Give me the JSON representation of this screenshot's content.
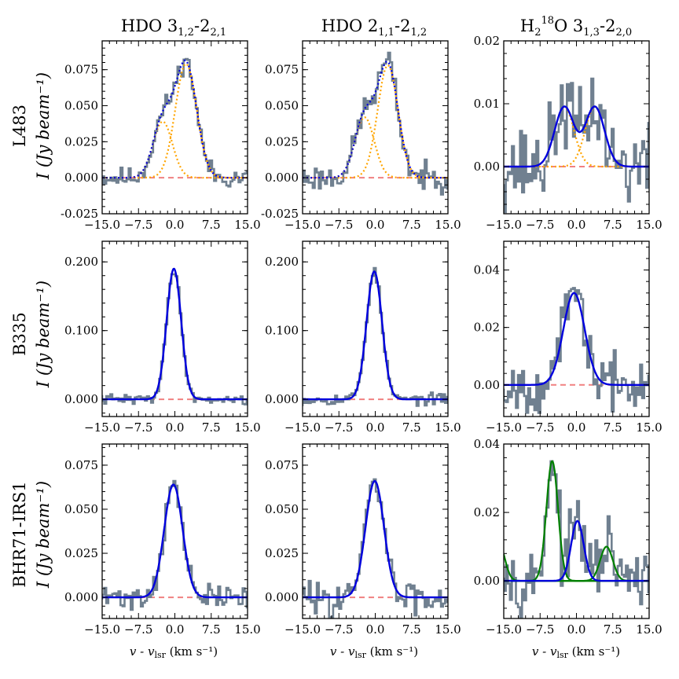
{
  "figure": {
    "column_titles": [
      {
        "base": "HDO 3",
        "sub1": "1,2",
        "dash": "-2",
        "sub2": "2,1"
      },
      {
        "base": "HDO 2",
        "sub1": "1,1",
        "dash": "-2",
        "sub2": "1,2"
      },
      {
        "base": "H",
        "sub0": "2",
        "sup": "18",
        "rest": "O 3",
        "sub1": "1,3",
        "dash": "-2",
        "sub2": "2,0"
      }
    ],
    "row_labels": [
      {
        "source": "L483",
        "ylabel": "I (Jy beam⁻¹)"
      },
      {
        "source": "B335",
        "ylabel": "I (Jy beam⁻¹)"
      },
      {
        "source": "BHR71-IRS1",
        "ylabel": "I (Jy beam⁻¹)"
      }
    ],
    "xlabel": "v - v_lsr (km s⁻¹)",
    "xlabel_main": "v - v",
    "xlabel_sub": "lsr",
    "xlabel_unit": " (km s⁻¹)",
    "colors": {
      "spectrum": "#708090",
      "fit": "#0000dd",
      "component": "#ffa500",
      "component2_green": "#008000",
      "baseline": "#f08080"
    }
  },
  "chart_data": [
    {
      "type": "line",
      "row": 0,
      "col": 0,
      "source": "L483",
      "line": "HDO 3_1,2-2_2,1",
      "xlim": [
        -15,
        15
      ],
      "ylim": [
        -0.025,
        0.095
      ],
      "xticks": [
        "−15.0",
        "−7.5",
        "0.0",
        "7.5",
        "15.0"
      ],
      "yticks": [
        -0.025,
        0.0,
        0.025,
        0.05,
        0.075
      ],
      "ytick_labels": [
        "-0.025",
        "0.000",
        "0.025",
        "0.050",
        "0.075"
      ],
      "components": [
        {
          "amp": 0.039,
          "center": -2.5,
          "sigma": 2.0
        },
        {
          "amp": 0.079,
          "center": 2.3,
          "sigma": 2.2
        }
      ],
      "component_color": "orange",
      "fit_style": "dotted",
      "noise": 0.0035,
      "seed": 11
    },
    {
      "type": "line",
      "row": 0,
      "col": 1,
      "source": "L483",
      "line": "HDO 2_1,1-2_1,2",
      "xlim": [
        -15,
        15
      ],
      "ylim": [
        -0.025,
        0.095
      ],
      "xticks": [
        "−15.0",
        "−7.5",
        "0.0",
        "7.5",
        "15.0"
      ],
      "yticks": [
        -0.025,
        0.0,
        0.025,
        0.05,
        0.075
      ],
      "ytick_labels": [
        "-0.025",
        "0.000",
        "0.025",
        "0.050",
        "0.075"
      ],
      "components": [
        {
          "amp": 0.042,
          "center": -2.2,
          "sigma": 2.0
        },
        {
          "amp": 0.078,
          "center": 2.6,
          "sigma": 2.1
        }
      ],
      "component_color": "orange",
      "fit_style": "dotted",
      "noise": 0.0045,
      "seed": 23
    },
    {
      "type": "line",
      "row": 0,
      "col": 2,
      "source": "L483",
      "line": "H2 18O 3_1,3-2_2,0",
      "xlim": [
        -15,
        15
      ],
      "ylim": [
        -0.0075,
        0.02
      ],
      "xticks": [
        "−15.0",
        "−7.5",
        "0.0",
        "7.5",
        "15.0"
      ],
      "yticks": [
        0.0,
        0.01,
        0.02
      ],
      "ytick_labels": [
        "0.00",
        "0.01",
        "0.02"
      ],
      "components": [
        {
          "amp": 0.0095,
          "center": -2.5,
          "sigma": 2.0
        },
        {
          "amp": 0.0095,
          "center": 3.8,
          "sigma": 2.0
        }
      ],
      "component_color": "orange",
      "fit_style": "solid",
      "noise": 0.0032,
      "seed": 37
    },
    {
      "type": "line",
      "row": 1,
      "col": 0,
      "source": "B335",
      "line": "HDO 3_1,2-2_2,1",
      "xlim": [
        -15,
        15
      ],
      "ylim": [
        -0.025,
        0.23
      ],
      "xticks": [
        "−15.0",
        "−7.5",
        "0.0",
        "7.5",
        "15.0"
      ],
      "yticks": [
        0.0,
        0.1,
        0.2
      ],
      "ytick_labels": [
        "0.000",
        "0.100",
        "0.200"
      ],
      "components": [
        {
          "amp": 0.19,
          "center": -0.2,
          "sigma": 1.5
        }
      ],
      "component_color": "none",
      "fit_style": "solid",
      "noise": 0.0035,
      "seed": 41
    },
    {
      "type": "line",
      "row": 1,
      "col": 1,
      "source": "B335",
      "line": "HDO 2_1,1-2_1,2",
      "xlim": [
        -15,
        15
      ],
      "ylim": [
        -0.025,
        0.23
      ],
      "xticks": [
        "−15.0",
        "−7.5",
        "0.0",
        "7.5",
        "15.0"
      ],
      "yticks": [
        0.0,
        0.1,
        0.2
      ],
      "ytick_labels": [
        "0.000",
        "0.100",
        "0.200"
      ],
      "components": [
        {
          "amp": 0.186,
          "center": -0.2,
          "sigma": 1.6
        }
      ],
      "component_color": "none",
      "fit_style": "solid",
      "noise": 0.004,
      "seed": 53
    },
    {
      "type": "line",
      "row": 1,
      "col": 2,
      "source": "B335",
      "line": "H2 18O 3_1,3-2_2,0",
      "xlim": [
        -15,
        15
      ],
      "ylim": [
        -0.011,
        0.05
      ],
      "xticks": [
        "−15.0",
        "−7.5",
        "0.0",
        "7.5",
        "15.0"
      ],
      "yticks": [
        0.0,
        0.02,
        0.04
      ],
      "ytick_labels": [
        "0.00",
        "0.02",
        "0.04"
      ],
      "components": [
        {
          "amp": 0.032,
          "center": -0.5,
          "sigma": 2.2
        }
      ],
      "component_color": "none",
      "fit_style": "solid",
      "noise": 0.0045,
      "seed": 67
    },
    {
      "type": "line",
      "row": 2,
      "col": 0,
      "source": "BHR71-IRS1",
      "line": "HDO 3_1,2-2_2,1",
      "xlim": [
        -15,
        15
      ],
      "ylim": [
        -0.012,
        0.087
      ],
      "xticks": [
        "−15.0",
        "−7.5",
        "0.0",
        "7.5",
        "15.0"
      ],
      "yticks": [
        0.0,
        0.025,
        0.05,
        0.075
      ],
      "ytick_labels": [
        "0.000",
        "0.025",
        "0.050",
        "0.075"
      ],
      "components": [
        {
          "amp": 0.064,
          "center": -0.3,
          "sigma": 1.9
        }
      ],
      "component_color": "none",
      "fit_style": "solid",
      "noise": 0.0035,
      "seed": 71
    },
    {
      "type": "line",
      "row": 2,
      "col": 1,
      "source": "BHR71-IRS1",
      "line": "HDO 2_1,1-2_1,2",
      "xlim": [
        -15,
        15
      ],
      "ylim": [
        -0.012,
        0.087
      ],
      "xticks": [
        "−15.0",
        "−7.5",
        "0.0",
        "7.5",
        "15.0"
      ],
      "yticks": [
        0.0,
        0.025,
        0.05,
        0.075
      ],
      "ytick_labels": [
        "0.000",
        "0.025",
        "0.050",
        "0.075"
      ],
      "components": [
        {
          "amp": 0.066,
          "center": -0.1,
          "sigma": 1.9
        }
      ],
      "component_color": "none",
      "fit_style": "solid",
      "noise": 0.0045,
      "seed": 83
    },
    {
      "type": "line",
      "row": 2,
      "col": 2,
      "source": "BHR71-IRS1",
      "line": "H2 18O 3_1,3-2_2,0",
      "xlim": [
        -15,
        15
      ],
      "ylim": [
        -0.011,
        0.04
      ],
      "xticks": [
        "−15.0",
        "−7.5",
        "0.0",
        "7.5",
        "15.0"
      ],
      "yticks": [
        0.0,
        0.02,
        0.04
      ],
      "ytick_labels": [
        "0.00",
        "0.02",
        "0.04"
      ],
      "components": [
        {
          "amp": 0.0175,
          "center": 0.2,
          "sigma": 1.3
        }
      ],
      "extra_green": [
        {
          "amp": 0.035,
          "center": -5.0,
          "sigma": 1.2
        },
        {
          "amp": 0.01,
          "center": 6.2,
          "sigma": 1.3
        },
        {
          "amp": 0.011,
          "center": -16.0,
          "sigma": 1.2
        }
      ],
      "component_color": "none",
      "fit_style": "solid",
      "noise": 0.0045,
      "seed": 97
    }
  ]
}
